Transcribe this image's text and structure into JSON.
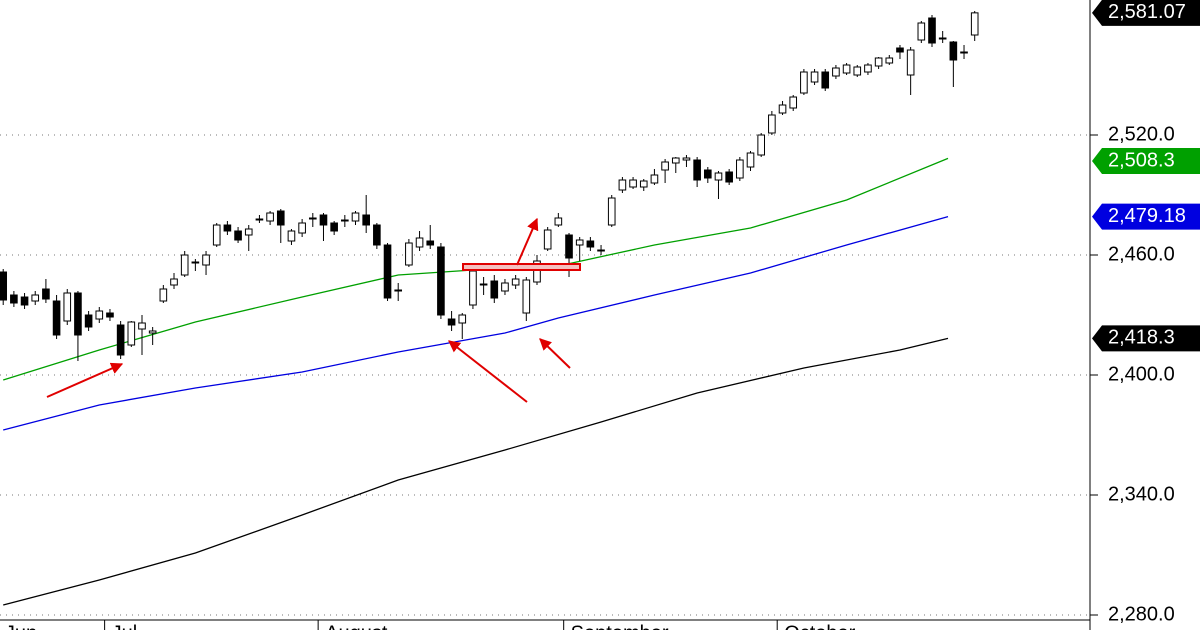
{
  "chart_data": {
    "type": "candlestick",
    "ylim": [
      2272.5,
      2587.5
    ],
    "yticks": [
      {
        "value": 2280,
        "label": "2,280.0"
      },
      {
        "value": 2340,
        "label": "2,340.0"
      },
      {
        "value": 2400,
        "label": "2,400.0"
      },
      {
        "value": 2460,
        "label": "2,460.0"
      },
      {
        "value": 2520,
        "label": "2,520.0"
      }
    ],
    "xlim": [
      -0.3,
      101.8
    ],
    "xticks": [
      {
        "value": 0,
        "label": "Jun"
      },
      {
        "value": 10,
        "label": "Jul"
      },
      {
        "value": 30,
        "label": "August"
      },
      {
        "value": 53,
        "label": "September"
      },
      {
        "value": 73,
        "label": "October"
      }
    ],
    "grid": true,
    "candles": {
      "color_up": "#ffffff",
      "color_down": "#000000",
      "last_label": "2,581.07",
      "open": [
        2451.5,
        2440,
        2439,
        2437,
        2443,
        2437,
        2427,
        2441,
        2430,
        2428,
        2431,
        2425,
        2415,
        2423,
        2421,
        2437,
        2445,
        2450,
        2456,
        2455,
        2465,
        2475,
        2472,
        2470,
        2477.5,
        2477,
        2482,
        2467,
        2471,
        2478,
        2480,
        2476,
        2477,
        2477,
        2480,
        2475,
        2465,
        2442,
        2455,
        2464,
        2467,
        2464,
        2428,
        2426,
        2435,
        2445,
        2447,
        2442,
        2445,
        2431,
        2446.5,
        2463,
        2475,
        2470,
        2465,
        2467,
        2462.5,
        2475,
        2492.5,
        2494,
        2494,
        2496,
        2502.5,
        2506,
        2507.5,
        2507.5,
        2502.5,
        2497.5,
        2501.5,
        2498.5,
        2504,
        2510,
        2521,
        2531,
        2533.5,
        2541,
        2546.5,
        2551.5,
        2549.5,
        2551,
        2550,
        2551.5,
        2554.5,
        2556,
        2563.5,
        2550,
        2567.5,
        2578.5,
        2568.5,
        2566.5,
        2561.5,
        2570
      ],
      "high": [
        2453,
        2442,
        2441,
        2442,
        2448,
        2440,
        2443,
        2442,
        2432,
        2434,
        2433,
        2427,
        2427,
        2430,
        2424,
        2445,
        2451,
        2462,
        2458,
        2462,
        2476,
        2477,
        2474,
        2475,
        2480,
        2482,
        2483,
        2473,
        2478,
        2481,
        2481,
        2477,
        2480,
        2482,
        2490,
        2476,
        2466,
        2446,
        2468,
        2472,
        2475,
        2466,
        2432,
        2431,
        2453,
        2449,
        2450,
        2448,
        2450,
        2449,
        2460,
        2474,
        2481,
        2471,
        2469,
        2469,
        2465,
        2490,
        2499,
        2499,
        2498,
        2503,
        2508,
        2509,
        2510,
        2509,
        2504,
        2502,
        2503,
        2509,
        2512,
        2521,
        2532,
        2537,
        2540,
        2553,
        2553,
        2553,
        2555,
        2556,
        2555,
        2556,
        2559,
        2560,
        2565,
        2564,
        2577,
        2580,
        2572,
        2567,
        2565,
        2582
      ],
      "low": [
        2435,
        2434,
        2433,
        2435,
        2436,
        2418,
        2425,
        2407,
        2422,
        2426,
        2427,
        2408,
        2414,
        2410,
        2415,
        2436,
        2443,
        2449,
        2452,
        2450,
        2464,
        2470,
        2466,
        2462,
        2476,
        2475,
        2466,
        2465,
        2469,
        2474,
        2467,
        2470,
        2474,
        2475,
        2471,
        2463,
        2437,
        2437,
        2454,
        2462,
        2463,
        2428,
        2422,
        2418,
        2433,
        2440,
        2436,
        2440,
        2443,
        2427,
        2445,
        2462,
        2474,
        2449,
        2457,
        2462,
        2460,
        2474,
        2491,
        2493,
        2492,
        2495,
        2496,
        2501,
        2504,
        2494,
        2496,
        2488,
        2495,
        2497,
        2502,
        2509,
        2520,
        2530,
        2532,
        2540,
        2545,
        2542,
        2548,
        2550,
        2549,
        2550,
        2553,
        2555,
        2558,
        2540,
        2566,
        2564,
        2566,
        2544,
        2558,
        2567
      ],
      "close": [
        2437.5,
        2436,
        2435,
        2440,
        2438,
        2420,
        2441,
        2420,
        2424,
        2432,
        2429,
        2410,
        2426.5,
        2426,
        2422,
        2443,
        2448,
        2460,
        2456.5,
        2460,
        2475,
        2472,
        2467.5,
        2473,
        2478,
        2481,
        2475,
        2472,
        2476,
        2478.5,
        2475,
        2472,
        2477.5,
        2481,
        2475,
        2465,
        2438.5,
        2442.5,
        2466,
        2468.5,
        2465,
        2430,
        2425,
        2430,
        2452,
        2445.5,
        2438.5,
        2446,
        2448,
        2447.5,
        2457,
        2472.5,
        2478.5,
        2458.5,
        2467.5,
        2464,
        2462,
        2488.5,
        2497.5,
        2497.5,
        2497,
        2500,
        2506.5,
        2508.5,
        2508.5,
        2497.5,
        2498.5,
        2501,
        2496.5,
        2507.5,
        2511,
        2520,
        2530,
        2535,
        2539,
        2551.5,
        2551.5,
        2543.5,
        2553.5,
        2555,
        2554,
        2555,
        2558.5,
        2558.5,
        2561.5,
        2562.5,
        2576,
        2566,
        2568.5,
        2557.5,
        2561,
        2581.07
      ]
    },
    "series": [
      {
        "color": "#00a000",
        "x": [
          0,
          9,
          18,
          28,
          37,
          44,
          52,
          61,
          70,
          79,
          88.5
        ],
        "values": [
          2397.5,
          2412.5,
          2426.5,
          2439,
          2450,
          2452.5,
          2454.5,
          2465,
          2473.5,
          2487.5,
          2508.3
        ],
        "last_label": "2,508.3"
      },
      {
        "color": "#0000e0",
        "x": [
          0,
          9,
          18,
          28,
          37,
          47,
          52,
          61,
          70,
          79,
          88.5
        ],
        "values": [
          2372.5,
          2385,
          2393.5,
          2401.5,
          2411.5,
          2421,
          2428.5,
          2440,
          2451,
          2465,
          2479.18
        ],
        "last_label": "2,479.18"
      },
      {
        "color": "#000000",
        "x": [
          0,
          9,
          18,
          28,
          37,
          47,
          56,
          65,
          75,
          84,
          88.5
        ],
        "values": [
          2285,
          2297.5,
          2311,
          2330,
          2347.5,
          2362.5,
          2376.5,
          2391,
          2403.5,
          2412.5,
          2418.3
        ],
        "last_label": "2,418.3"
      }
    ]
  }
}
